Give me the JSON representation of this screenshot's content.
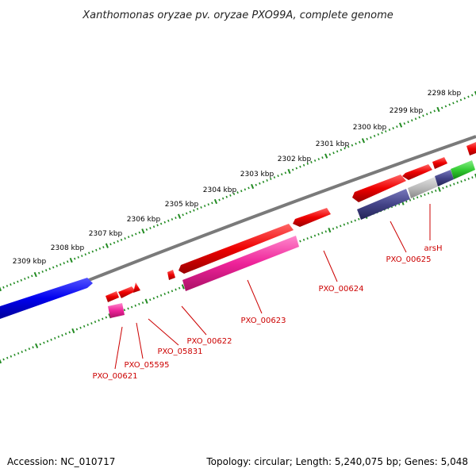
{
  "title": "Xanthomonas oryzae pv. oryzae PXO99A, complete genome",
  "footer": {
    "accession": "Accession: NC_010717",
    "summary": "Topology: circular; Length: 5,240,075 bp; Genes: 5,048"
  },
  "scale_labels": [
    "2298 kbp",
    "2299 kbp",
    "2300 kbp",
    "2301 kbp",
    "2302 kbp",
    "2303 kbp",
    "2304 kbp",
    "2305 kbp",
    "2306 kbp",
    "2307 kbp",
    "2308 kbp",
    "2309 kbp"
  ],
  "gene_labels": [
    "arsH",
    "PXO_00625",
    "PXO_00624",
    "PXO_00623",
    "PXO_00622",
    "PXO_05831",
    "PXO_05595",
    "PXO_00621"
  ],
  "colors": {
    "backbone": "#7a7a7a",
    "ticks": "#228b22",
    "forward_gene": "#ee0000",
    "pink_feature": "#ee2299",
    "blue_feature": "#0000ee",
    "navy_feature": "#444488",
    "gray_feature": "#bbbbbb",
    "green_feature": "#33cc33",
    "label": "#cc0000"
  }
}
